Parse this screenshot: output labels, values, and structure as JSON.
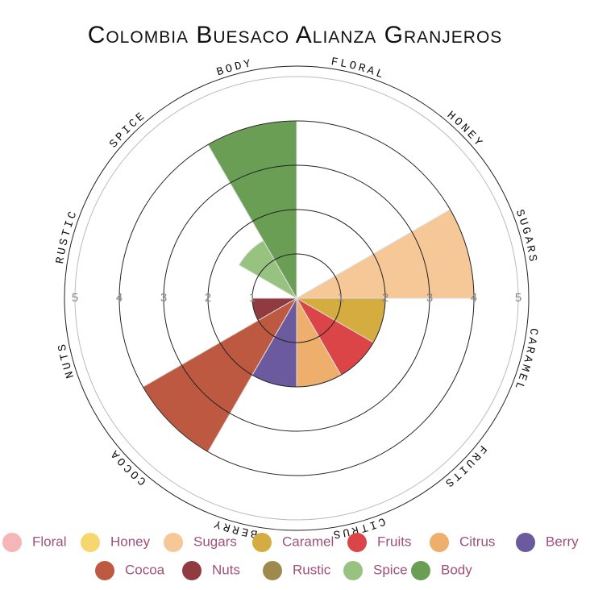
{
  "chart_data": {
    "type": "polar-area",
    "title": "Colombia Buesaco Alianza Granjeros",
    "categories": [
      "Floral",
      "Honey",
      "Sugars",
      "Caramel",
      "Fruits",
      "Citrus",
      "Berry",
      "Cocoa",
      "Nuts",
      "Rustic",
      "Spice",
      "Body"
    ],
    "values": [
      0,
      0,
      4,
      2,
      2,
      2,
      2,
      4,
      1,
      0,
      1.5,
      4
    ],
    "colors": [
      "#f4b6b6",
      "#f5d76e",
      "#f6c897",
      "#d4ac3f",
      "#dc4548",
      "#eeae6c",
      "#6c5a9e",
      "#bd5941",
      "#8f3b3f",
      "#9e8a4c",
      "#97c27f",
      "#6a9e55"
    ],
    "ylim": [
      0,
      5
    ],
    "yticks": [
      1,
      2,
      3,
      4,
      5
    ],
    "legend": "bottom"
  }
}
